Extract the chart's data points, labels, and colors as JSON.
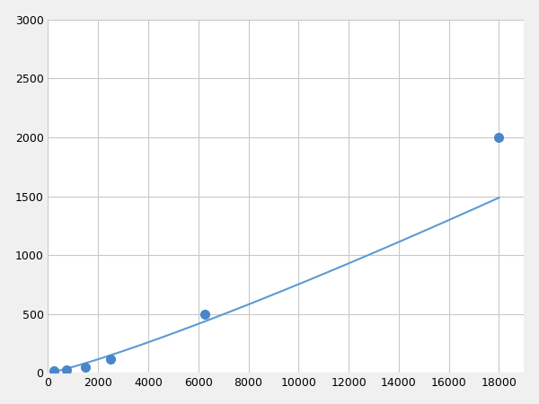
{
  "x_points": [
    250,
    750,
    1500,
    2500,
    6250,
    18000
  ],
  "y_points": [
    18,
    30,
    50,
    120,
    500,
    2000
  ],
  "line_color": "#5b9bd5",
  "marker_color": "#4a86c8",
  "marker_size": 7,
  "xlim": [
    0,
    19000
  ],
  "ylim": [
    0,
    3000
  ],
  "xticks": [
    0,
    2000,
    4000,
    6000,
    8000,
    10000,
    12000,
    14000,
    16000,
    18000
  ],
  "yticks": [
    0,
    500,
    1000,
    1500,
    2000,
    2500,
    3000
  ],
  "grid_color": "#c8c8c8",
  "background_color": "#ffffff",
  "fig_background": "#f0f0f0"
}
